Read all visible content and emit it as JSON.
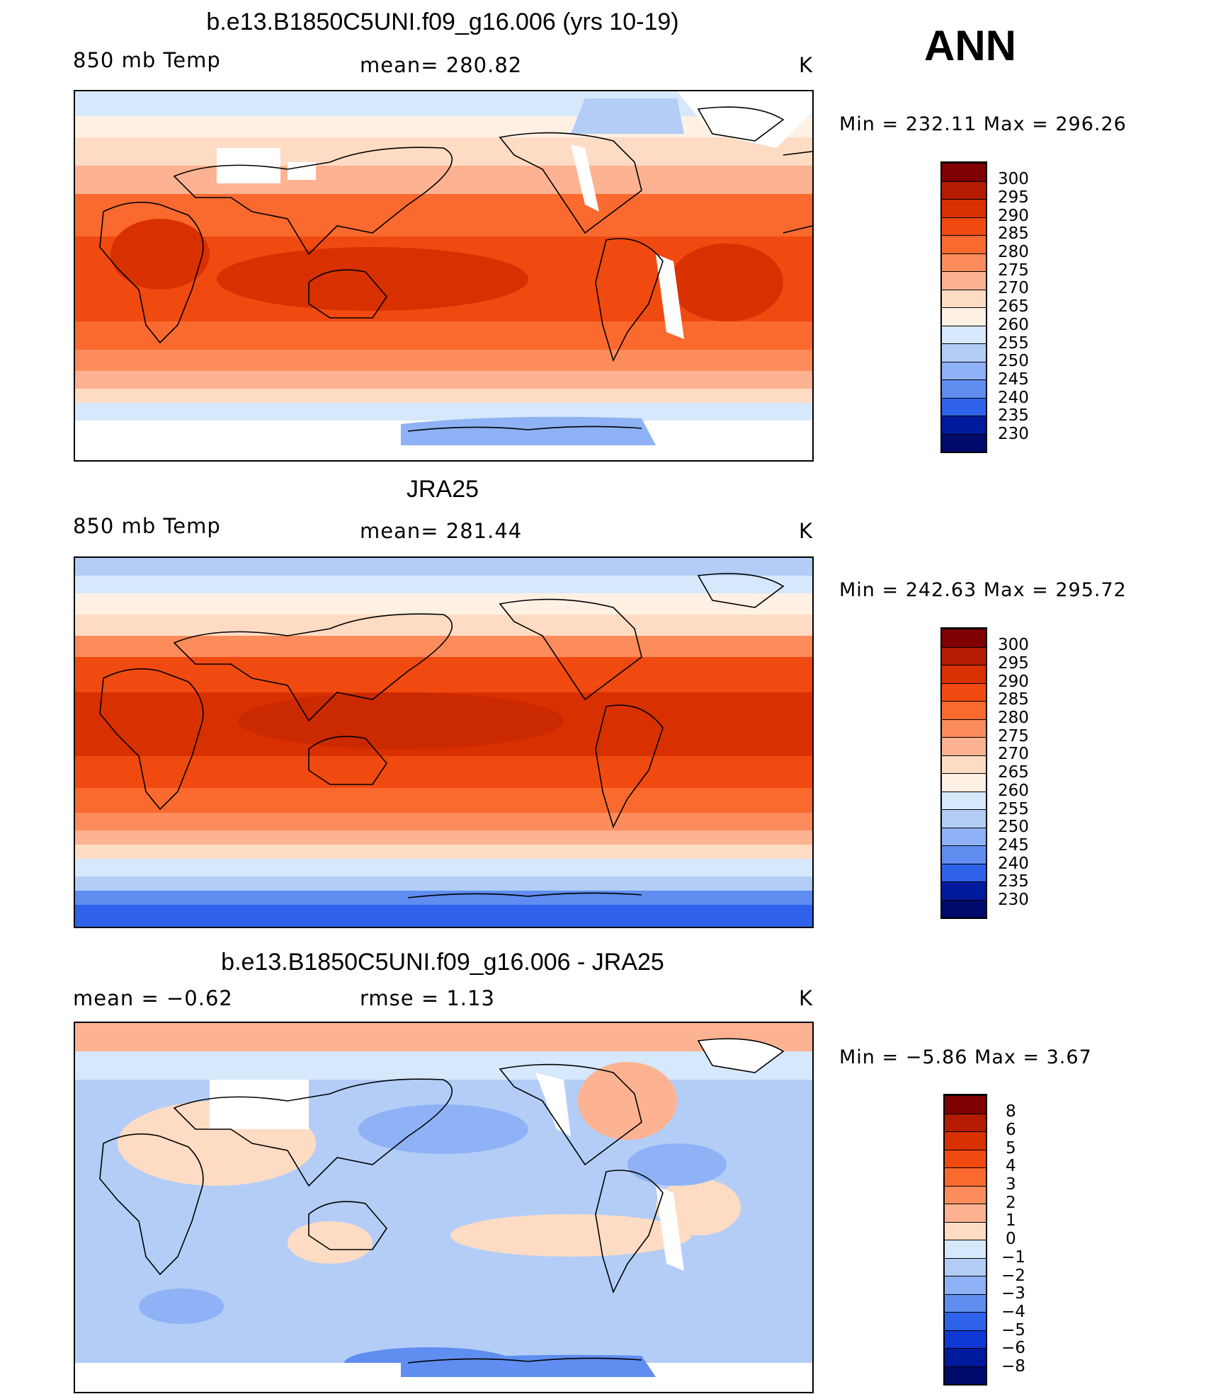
{
  "season": "ANN",
  "panels": [
    {
      "title": "b.e13.B1850C5UNI.f09_g16.006 (yrs 10-19)",
      "left_label": "850 mb Temp",
      "center_label": "mean= 280.82",
      "units": "K",
      "minmax": "Min = 232.11 Max = 296.26",
      "colorbar_labels": [
        "300",
        "295",
        "290",
        "285",
        "280",
        "275",
        "270",
        "265",
        "260",
        "255",
        "250",
        "245",
        "240",
        "235",
        "230"
      ]
    },
    {
      "title": "JRA25",
      "left_label": "850 mb Temp",
      "center_label": "mean= 281.44",
      "units": "K",
      "minmax": "Min = 242.63 Max = 295.72",
      "colorbar_labels": [
        "300",
        "295",
        "290",
        "285",
        "280",
        "275",
        "270",
        "265",
        "260",
        "255",
        "250",
        "245",
        "240",
        "235",
        "230"
      ]
    },
    {
      "title": "b.e13.B1850C5UNI.f09_g16.006 - JRA25",
      "left_label": "mean =    −0.62",
      "center_label": "rmse =     1.13",
      "units": "K",
      "minmax": "Min =   −5.86 Max =      3.67",
      "colorbar_labels": [
        "8",
        "6",
        "5",
        "4",
        "3",
        "2",
        "1",
        "0",
        "−1",
        "−2",
        "−3",
        "−4",
        "−5",
        "−6",
        "−8"
      ]
    }
  ],
  "colors": {
    "abs_scale": [
      "#7f0000",
      "#b31c00",
      "#d93000",
      "#f04a10",
      "#fa6a2e",
      "#fc8c5c",
      "#fdb391",
      "#fedcc4",
      "#fff0e4",
      "#d6e8fb",
      "#b3cdf7",
      "#8eb2f5",
      "#5f8df0",
      "#2e62ea",
      "#1038d4",
      "#001a9e",
      "#000a6a"
    ],
    "diff_scale": [
      "#7f0000",
      "#b31c00",
      "#d93000",
      "#f04a10",
      "#fa6a2e",
      "#fc8c5c",
      "#fdb391",
      "#fedcc4",
      "#d6e8fb",
      "#b3cdf7",
      "#8eb2f5",
      "#5f8df0",
      "#2e62ea",
      "#1038d4",
      "#001a9e",
      "#000a6a"
    ]
  }
}
